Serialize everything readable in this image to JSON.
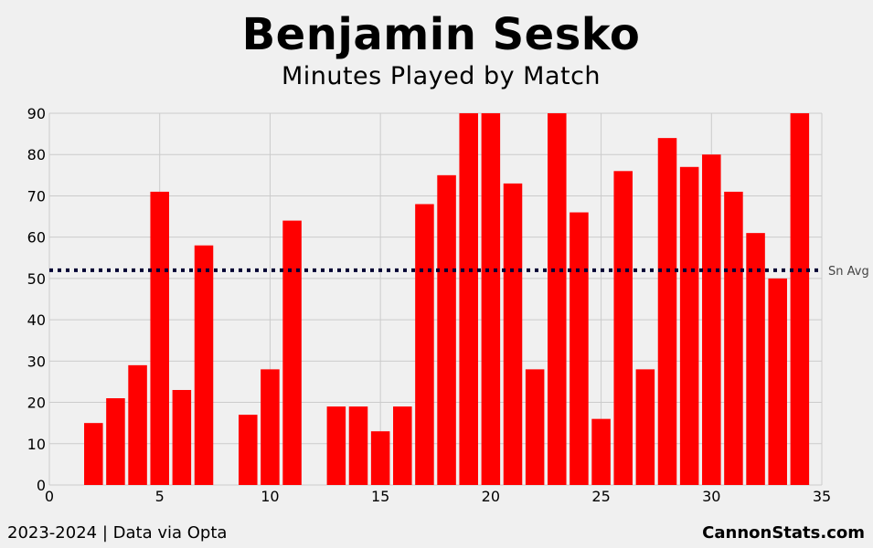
{
  "header": {
    "title": "Benjamin Sesko",
    "subtitle": "Minutes Played by Match"
  },
  "footer": {
    "season_source": "2023-2024 | Data via Opta",
    "brand": "CannonStats.com"
  },
  "colors": {
    "bar": "#ff0000",
    "avg_line": "#000033",
    "grid": "#cbcbcb",
    "background": "#f0f0f0"
  },
  "chart_data": {
    "type": "bar",
    "title": "Benjamin Sesko",
    "subtitle": "Minutes Played by Match",
    "x": [
      2,
      3,
      4,
      5,
      6,
      7,
      9,
      10,
      11,
      13,
      14,
      15,
      16,
      17,
      18,
      19,
      20,
      21,
      22,
      23,
      24,
      25,
      26,
      27,
      28,
      29,
      30,
      31,
      32,
      33,
      34
    ],
    "values": [
      15,
      21,
      29,
      71,
      23,
      58,
      17,
      28,
      64,
      19,
      19,
      13,
      19,
      68,
      75,
      90,
      90,
      73,
      28,
      90,
      66,
      16,
      76,
      28,
      84,
      77,
      80,
      71,
      61,
      50,
      90
    ],
    "xlim": [
      0,
      35
    ],
    "ylim": [
      0,
      90
    ],
    "xticks": [
      0,
      5,
      10,
      15,
      20,
      25,
      30,
      35
    ],
    "yticks": [
      0,
      10,
      20,
      30,
      40,
      50,
      60,
      70,
      80,
      90
    ],
    "grid": true,
    "reference_line": {
      "label": "Sn Avg",
      "value": 52,
      "style": "dotted"
    }
  }
}
